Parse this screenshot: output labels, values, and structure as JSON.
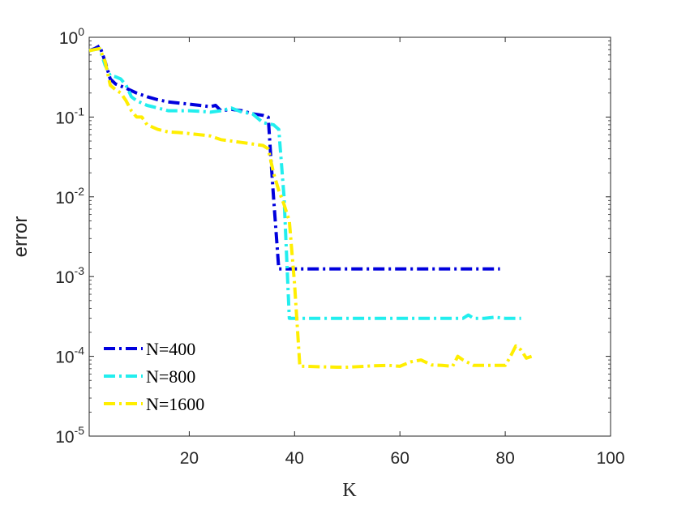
{
  "chart_data": {
    "type": "line",
    "xlabel": "K",
    "ylabel": "error",
    "xlim": [
      1,
      100
    ],
    "ylim": [
      1e-05,
      1
    ],
    "yscale": "log",
    "x_ticks": [
      20,
      40,
      60,
      80,
      100
    ],
    "y_ticks": [
      {
        "value": 1,
        "base": "10",
        "exp": "0"
      },
      {
        "value": 0.1,
        "base": "10",
        "exp": "-1"
      },
      {
        "value": 0.01,
        "base": "10",
        "exp": "-2"
      },
      {
        "value": 0.001,
        "base": "10",
        "exp": "-3"
      },
      {
        "value": 0.0001,
        "base": "10",
        "exp": "-4"
      },
      {
        "value": 1e-05,
        "base": "10",
        "exp": "-5"
      }
    ],
    "grid": false,
    "legend_position": "bottom-left",
    "series": [
      {
        "name": "N=400",
        "color": "#0000dd",
        "dash": "dashdot",
        "x": [
          1,
          2,
          3,
          4,
          5,
          6,
          8,
          10,
          12,
          14,
          16,
          18,
          20,
          22,
          24,
          25,
          26,
          28,
          30,
          32,
          34,
          35,
          35.5,
          36,
          37,
          38,
          40,
          50,
          60,
          70,
          79
        ],
        "y": [
          0.68,
          0.72,
          0.78,
          0.5,
          0.3,
          0.26,
          0.23,
          0.2,
          0.18,
          0.165,
          0.155,
          0.15,
          0.145,
          0.14,
          0.135,
          0.14,
          0.12,
          0.125,
          0.12,
          0.11,
          0.105,
          0.1,
          0.03,
          0.01,
          0.00125,
          0.00125,
          0.00125,
          0.00125,
          0.00125,
          0.00125,
          0.00125
        ]
      },
      {
        "name": "N=800",
        "color": "#22eeee",
        "dash": "dashdot",
        "x": [
          1,
          2,
          3,
          4,
          5,
          6,
          7,
          8,
          9,
          10,
          12,
          14,
          16,
          18,
          20,
          22,
          24,
          26,
          28,
          30,
          32,
          34,
          36,
          37,
          38,
          39,
          40,
          45,
          50,
          55,
          60,
          65,
          70,
          72,
          73,
          74,
          76,
          78,
          80,
          83
        ],
        "y": [
          0.68,
          0.7,
          0.72,
          0.45,
          0.33,
          0.32,
          0.3,
          0.25,
          0.18,
          0.16,
          0.14,
          0.13,
          0.12,
          0.12,
          0.12,
          0.118,
          0.115,
          0.12,
          0.13,
          0.115,
          0.11,
          0.085,
          0.08,
          0.07,
          0.01,
          0.0003,
          0.0003,
          0.0003,
          0.0003,
          0.0003,
          0.0003,
          0.0003,
          0.0003,
          0.0003,
          0.00033,
          0.0003,
          0.0003,
          0.00031,
          0.0003,
          0.0003
        ]
      },
      {
        "name": "N=1600",
        "color": "#ffee00",
        "dash": "dashdot",
        "x": [
          1,
          2,
          3,
          4,
          5,
          6,
          7,
          8,
          9,
          10,
          11,
          12,
          14,
          16,
          18,
          20,
          22,
          24,
          26,
          28,
          30,
          32,
          34,
          35,
          36,
          37,
          38,
          39,
          40,
          41,
          42,
          45,
          48,
          50,
          55,
          58,
          60,
          62,
          64,
          66,
          68,
          70,
          71,
          72,
          74,
          76,
          78,
          79,
          80,
          81,
          82,
          83,
          84,
          85
        ],
        "y": [
          0.68,
          0.7,
          0.72,
          0.5,
          0.25,
          0.22,
          0.2,
          0.16,
          0.12,
          0.1,
          0.1,
          0.08,
          0.07,
          0.065,
          0.064,
          0.062,
          0.06,
          0.058,
          0.052,
          0.05,
          0.048,
          0.046,
          0.044,
          0.04,
          0.02,
          0.012,
          0.008,
          0.005,
          0.0008,
          7.5e-05,
          7.5e-05,
          7.4e-05,
          7.3e-05,
          7.3e-05,
          7.6e-05,
          7.7e-05,
          7.5e-05,
          8.5e-05,
          9e-05,
          7.8e-05,
          7.7e-05,
          7.5e-05,
          0.0001,
          9e-05,
          7.7e-05,
          7.7e-05,
          7.7e-05,
          7.7e-05,
          7.7e-05,
          0.0001,
          0.000135,
          0.00012,
          9.5e-05,
          0.0001
        ]
      }
    ]
  }
}
